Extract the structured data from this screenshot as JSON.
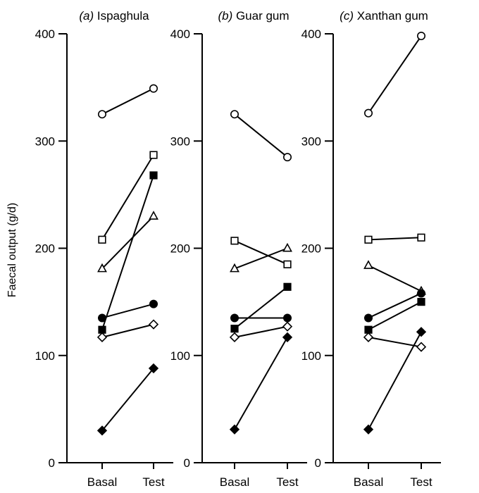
{
  "chart_data": {
    "type": "line",
    "ylabel": "Faecal output (g/d)",
    "ylim": [
      0,
      400
    ],
    "yticks": [
      "0",
      "100",
      "200",
      "300",
      "400"
    ],
    "categories": [
      "Basal",
      "Test"
    ],
    "marker_styles": [
      "open-circle",
      "open-square",
      "open-triangle",
      "filled-circle",
      "filled-square",
      "open-diamond",
      "filled-diamond"
    ],
    "panels": [
      {
        "letter": "(a)",
        "title": "Ispaghula",
        "series": [
          {
            "marker": "open-circle",
            "values": [
              325,
              349
            ]
          },
          {
            "marker": "open-square",
            "values": [
              208,
              287
            ]
          },
          {
            "marker": "open-triangle",
            "values": [
              181,
              230
            ]
          },
          {
            "marker": "filled-circle",
            "values": [
              135,
              148
            ]
          },
          {
            "marker": "filled-square",
            "values": [
              124,
              268
            ]
          },
          {
            "marker": "open-diamond",
            "values": [
              117,
              129
            ]
          },
          {
            "marker": "filled-diamond",
            "values": [
              30,
              88
            ]
          }
        ]
      },
      {
        "letter": "(b)",
        "title": "Guar gum",
        "series": [
          {
            "marker": "open-circle",
            "values": [
              325,
              285
            ]
          },
          {
            "marker": "open-square",
            "values": [
              207,
              185
            ]
          },
          {
            "marker": "open-triangle",
            "values": [
              181,
              200
            ]
          },
          {
            "marker": "filled-circle",
            "values": [
              135,
              135
            ]
          },
          {
            "marker": "filled-square",
            "values": [
              125,
              164
            ]
          },
          {
            "marker": "open-diamond",
            "values": [
              117,
              127
            ]
          },
          {
            "marker": "filled-diamond",
            "values": [
              31,
              117
            ]
          }
        ]
      },
      {
        "letter": "(c)",
        "title": "Xanthan gum",
        "series": [
          {
            "marker": "open-circle",
            "values": [
              326,
              398
            ]
          },
          {
            "marker": "open-square",
            "values": [
              208,
              210
            ]
          },
          {
            "marker": "open-triangle",
            "values": [
              184,
              160
            ]
          },
          {
            "marker": "filled-circle",
            "values": [
              135,
              158
            ]
          },
          {
            "marker": "filled-square",
            "values": [
              124,
              150
            ]
          },
          {
            "marker": "open-diamond",
            "values": [
              117,
              108
            ]
          },
          {
            "marker": "filled-diamond",
            "values": [
              31,
              122
            ]
          }
        ]
      }
    ]
  }
}
